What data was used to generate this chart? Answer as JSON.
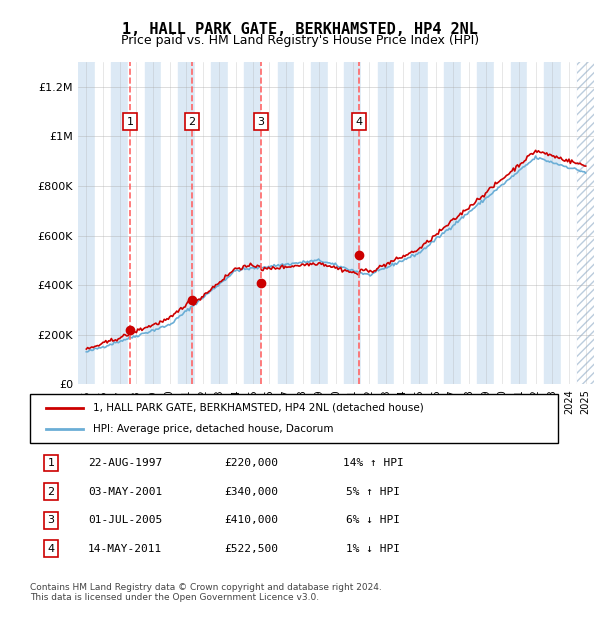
{
  "title": "1, HALL PARK GATE, BERKHAMSTED, HP4 2NL",
  "subtitle": "Price paid vs. HM Land Registry's House Price Index (HPI)",
  "ylabel_ticks": [
    "£0",
    "£200K",
    "£400K",
    "£600K",
    "£800K",
    "£1M",
    "£1.2M"
  ],
  "ytick_values": [
    0,
    200000,
    400000,
    600000,
    800000,
    1000000,
    1200000
  ],
  "ylim": [
    0,
    1300000
  ],
  "xlim_start": 1994.5,
  "xlim_end": 2025.5,
  "legend_line1": "1, HALL PARK GATE, BERKHAMSTED, HP4 2NL (detached house)",
  "legend_line2": "HPI: Average price, detached house, Dacorum",
  "transactions": [
    {
      "num": 1,
      "date": "22-AUG-1997",
      "price": 220000,
      "pct": "14%",
      "dir": "↑",
      "year": 1997.64
    },
    {
      "num": 2,
      "date": "03-MAY-2001",
      "price": 340000,
      "pct": "5%",
      "dir": "↑",
      "year": 2001.34
    },
    {
      "num": 3,
      "date": "01-JUL-2005",
      "price": 410000,
      "pct": "6%",
      "dir": "↓",
      "year": 2005.5
    },
    {
      "num": 4,
      "date": "14-MAY-2011",
      "price": 522500,
      "pct": "1%",
      "dir": "↓",
      "year": 2011.37
    }
  ],
  "footer": "Contains HM Land Registry data © Crown copyright and database right 2024.\nThis data is licensed under the Open Government Licence v3.0.",
  "hpi_color": "#6baed6",
  "price_color": "#cc0000",
  "bg_color": "#dce9f5",
  "stripe_color": "#ffffff",
  "hatch_color": "#cccccc",
  "grid_color": "#aaaaaa",
  "dashed_line_color": "#ff6666"
}
